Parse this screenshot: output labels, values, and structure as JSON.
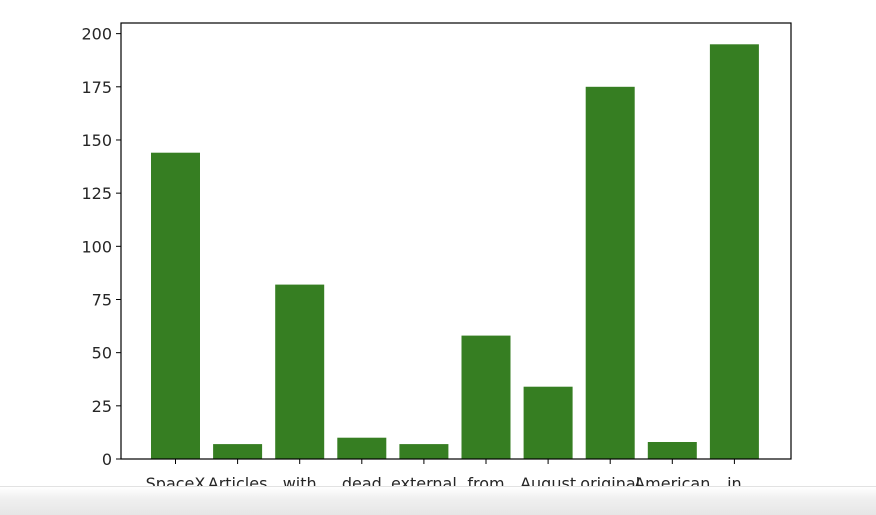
{
  "colors": {
    "bar": "#367e22",
    "axes": "#000000",
    "text": "#262626",
    "background": "#ffffff"
  },
  "chart_data": {
    "type": "bar",
    "title": "",
    "xlabel": "",
    "ylabel": "",
    "categories": [
      "SpaceX",
      "Articles",
      "with",
      "dead",
      "external",
      "from",
      "August",
      "original",
      "American",
      "in"
    ],
    "values": [
      144,
      7,
      82,
      10,
      7,
      58,
      34,
      175,
      8,
      195
    ],
    "ylim": [
      0,
      205
    ],
    "yticks": [
      0,
      25,
      50,
      75,
      100,
      125,
      150,
      175,
      200
    ],
    "grid": false,
    "legend": null
  }
}
